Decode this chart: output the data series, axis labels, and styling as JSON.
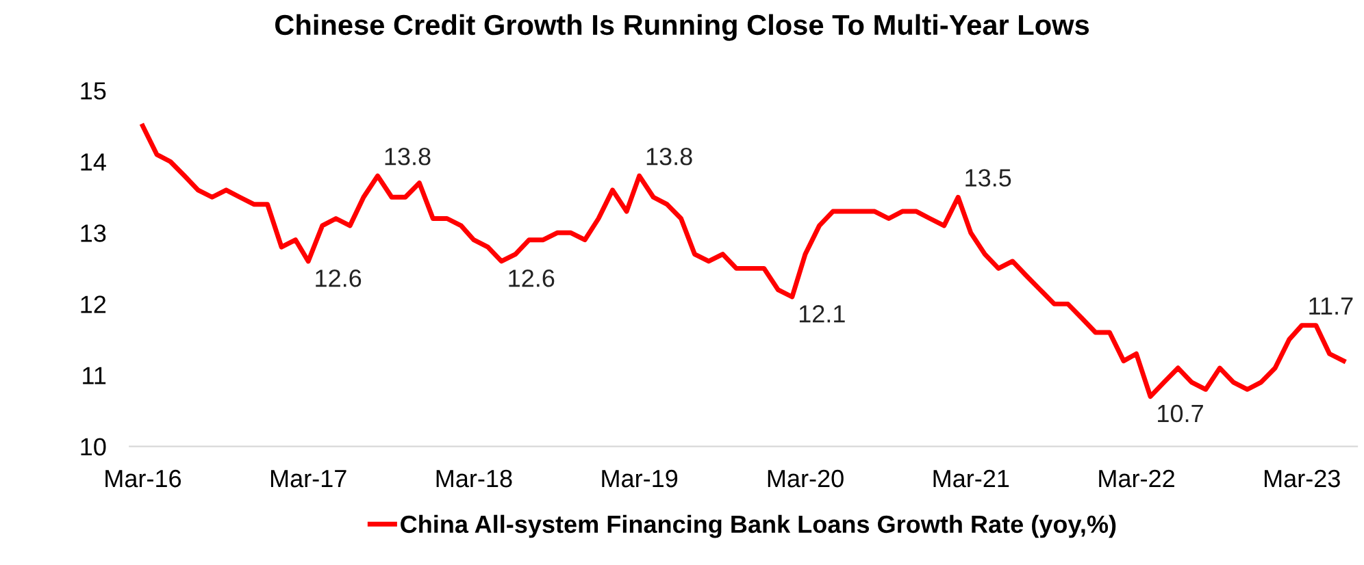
{
  "chart_data": {
    "type": "line",
    "title": "Chinese Credit Growth Is Running Close To Multi-Year Lows",
    "x": [
      "2016-03",
      "2016-04",
      "2016-05",
      "2016-06",
      "2016-07",
      "2016-08",
      "2016-09",
      "2016-10",
      "2016-11",
      "2016-12",
      "2017-01",
      "2017-02",
      "2017-03",
      "2017-04",
      "2017-05",
      "2017-06",
      "2017-07",
      "2017-08",
      "2017-09",
      "2017-10",
      "2017-11",
      "2017-12",
      "2018-01",
      "2018-02",
      "2018-03",
      "2018-04",
      "2018-05",
      "2018-06",
      "2018-07",
      "2018-08",
      "2018-09",
      "2018-10",
      "2018-11",
      "2018-12",
      "2019-01",
      "2019-02",
      "2019-03",
      "2019-04",
      "2019-05",
      "2019-06",
      "2019-07",
      "2019-08",
      "2019-09",
      "2019-10",
      "2019-11",
      "2019-12",
      "2020-01",
      "2020-02",
      "2020-03",
      "2020-04",
      "2020-05",
      "2020-06",
      "2020-07",
      "2020-08",
      "2020-09",
      "2020-10",
      "2020-11",
      "2020-12",
      "2021-01",
      "2021-02",
      "2021-03",
      "2021-04",
      "2021-05",
      "2021-06",
      "2021-07",
      "2021-08",
      "2021-09",
      "2021-10",
      "2021-11",
      "2021-12",
      "2022-01",
      "2022-02",
      "2022-03",
      "2022-04",
      "2022-05",
      "2022-06",
      "2022-07",
      "2022-08",
      "2022-09",
      "2022-10",
      "2022-11",
      "2022-12",
      "2023-01",
      "2023-02",
      "2023-03",
      "2023-04",
      "2023-05",
      "2023-06"
    ],
    "series": [
      {
        "name": "China All-system Financing Bank Loans Growth Rate (yoy,%)",
        "color": "#ff0000",
        "values": [
          14.5,
          14.1,
          14.0,
          13.8,
          13.6,
          13.5,
          13.6,
          13.5,
          13.4,
          13.4,
          12.8,
          12.9,
          12.6,
          13.1,
          13.2,
          13.1,
          13.5,
          13.8,
          13.5,
          13.5,
          13.7,
          13.2,
          13.2,
          13.1,
          12.9,
          12.8,
          12.6,
          12.7,
          12.9,
          12.9,
          13.0,
          13.0,
          12.9,
          13.2,
          13.6,
          13.3,
          13.8,
          13.5,
          13.4,
          13.2,
          12.7,
          12.6,
          12.7,
          12.5,
          12.5,
          12.5,
          12.2,
          12.1,
          12.7,
          13.1,
          13.3,
          13.3,
          13.3,
          13.3,
          13.2,
          13.3,
          13.3,
          13.2,
          13.1,
          13.5,
          13.0,
          12.7,
          12.5,
          12.6,
          12.4,
          12.2,
          12.0,
          12.0,
          11.8,
          11.6,
          11.6,
          11.2,
          11.3,
          10.7,
          10.9,
          11.1,
          10.9,
          10.8,
          11.1,
          10.9,
          10.8,
          10.9,
          11.1,
          11.5,
          11.7,
          11.7,
          11.3,
          11.2
        ],
        "value_labels": [
          null,
          null,
          null,
          null,
          null,
          null,
          null,
          null,
          null,
          null,
          null,
          null,
          "12.6",
          null,
          null,
          null,
          null,
          "13.8",
          null,
          null,
          null,
          null,
          null,
          null,
          null,
          null,
          "12.6",
          null,
          null,
          null,
          null,
          null,
          null,
          null,
          null,
          null,
          "13.8",
          null,
          null,
          null,
          null,
          null,
          null,
          null,
          null,
          null,
          null,
          "12.1",
          null,
          null,
          null,
          null,
          null,
          null,
          null,
          null,
          null,
          null,
          null,
          "13.5",
          null,
          null,
          null,
          null,
          null,
          null,
          null,
          null,
          null,
          null,
          null,
          null,
          null,
          "10.7",
          null,
          null,
          null,
          null,
          null,
          null,
          null,
          null,
          null,
          null,
          "11.7",
          null,
          null,
          null
        ]
      }
    ],
    "xlim": [
      "2016-02",
      "2023-07"
    ],
    "xticks": [
      {
        "value": "2016-03",
        "label": "Mar-16"
      },
      {
        "value": "2017-03",
        "label": "Mar-17"
      },
      {
        "value": "2018-03",
        "label": "Mar-18"
      },
      {
        "value": "2019-03",
        "label": "Mar-19"
      },
      {
        "value": "2020-03",
        "label": "Mar-20"
      },
      {
        "value": "2021-03",
        "label": "Mar-21"
      },
      {
        "value": "2022-03",
        "label": "Mar-22"
      },
      {
        "value": "2023-03",
        "label": "Mar-23"
      }
    ],
    "ylim": [
      10,
      15
    ],
    "yticks": [
      10,
      11,
      12,
      13,
      14,
      15
    ],
    "grid": false,
    "legend": "bottom",
    "marker": "none",
    "line_style": "solid"
  }
}
